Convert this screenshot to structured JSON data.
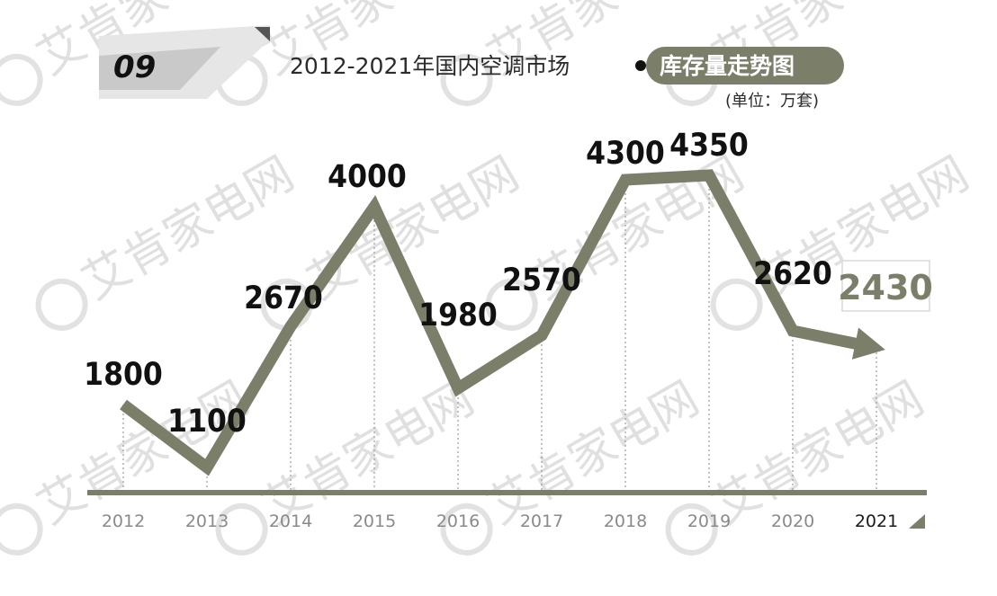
{
  "badge": "09",
  "title": "2012-2021年国内空调市场",
  "title_highlight": "库存量走势图",
  "unit": "(单位：万套)",
  "watermark": "艾肯家电网",
  "colors": {
    "accent": "#7b7f6a",
    "line": "#7b7f6a",
    "text": "#111111",
    "tick": "#8a8a8a"
  },
  "chart_data": {
    "type": "line",
    "title": "2012-2021年国内空调市场 库存量走势图",
    "unit": "(单位：万套)",
    "categories": [
      "2012",
      "2013",
      "2014",
      "2015",
      "2016",
      "2017",
      "2018",
      "2019",
      "2020",
      "2021"
    ],
    "series": [
      {
        "values": [
          1800,
          1100,
          2670,
          4000,
          1980,
          2570,
          4300,
          4350,
          2620,
          2430
        ]
      }
    ],
    "ylim": [
      0,
      5000
    ],
    "grid": false,
    "legend": "none"
  }
}
